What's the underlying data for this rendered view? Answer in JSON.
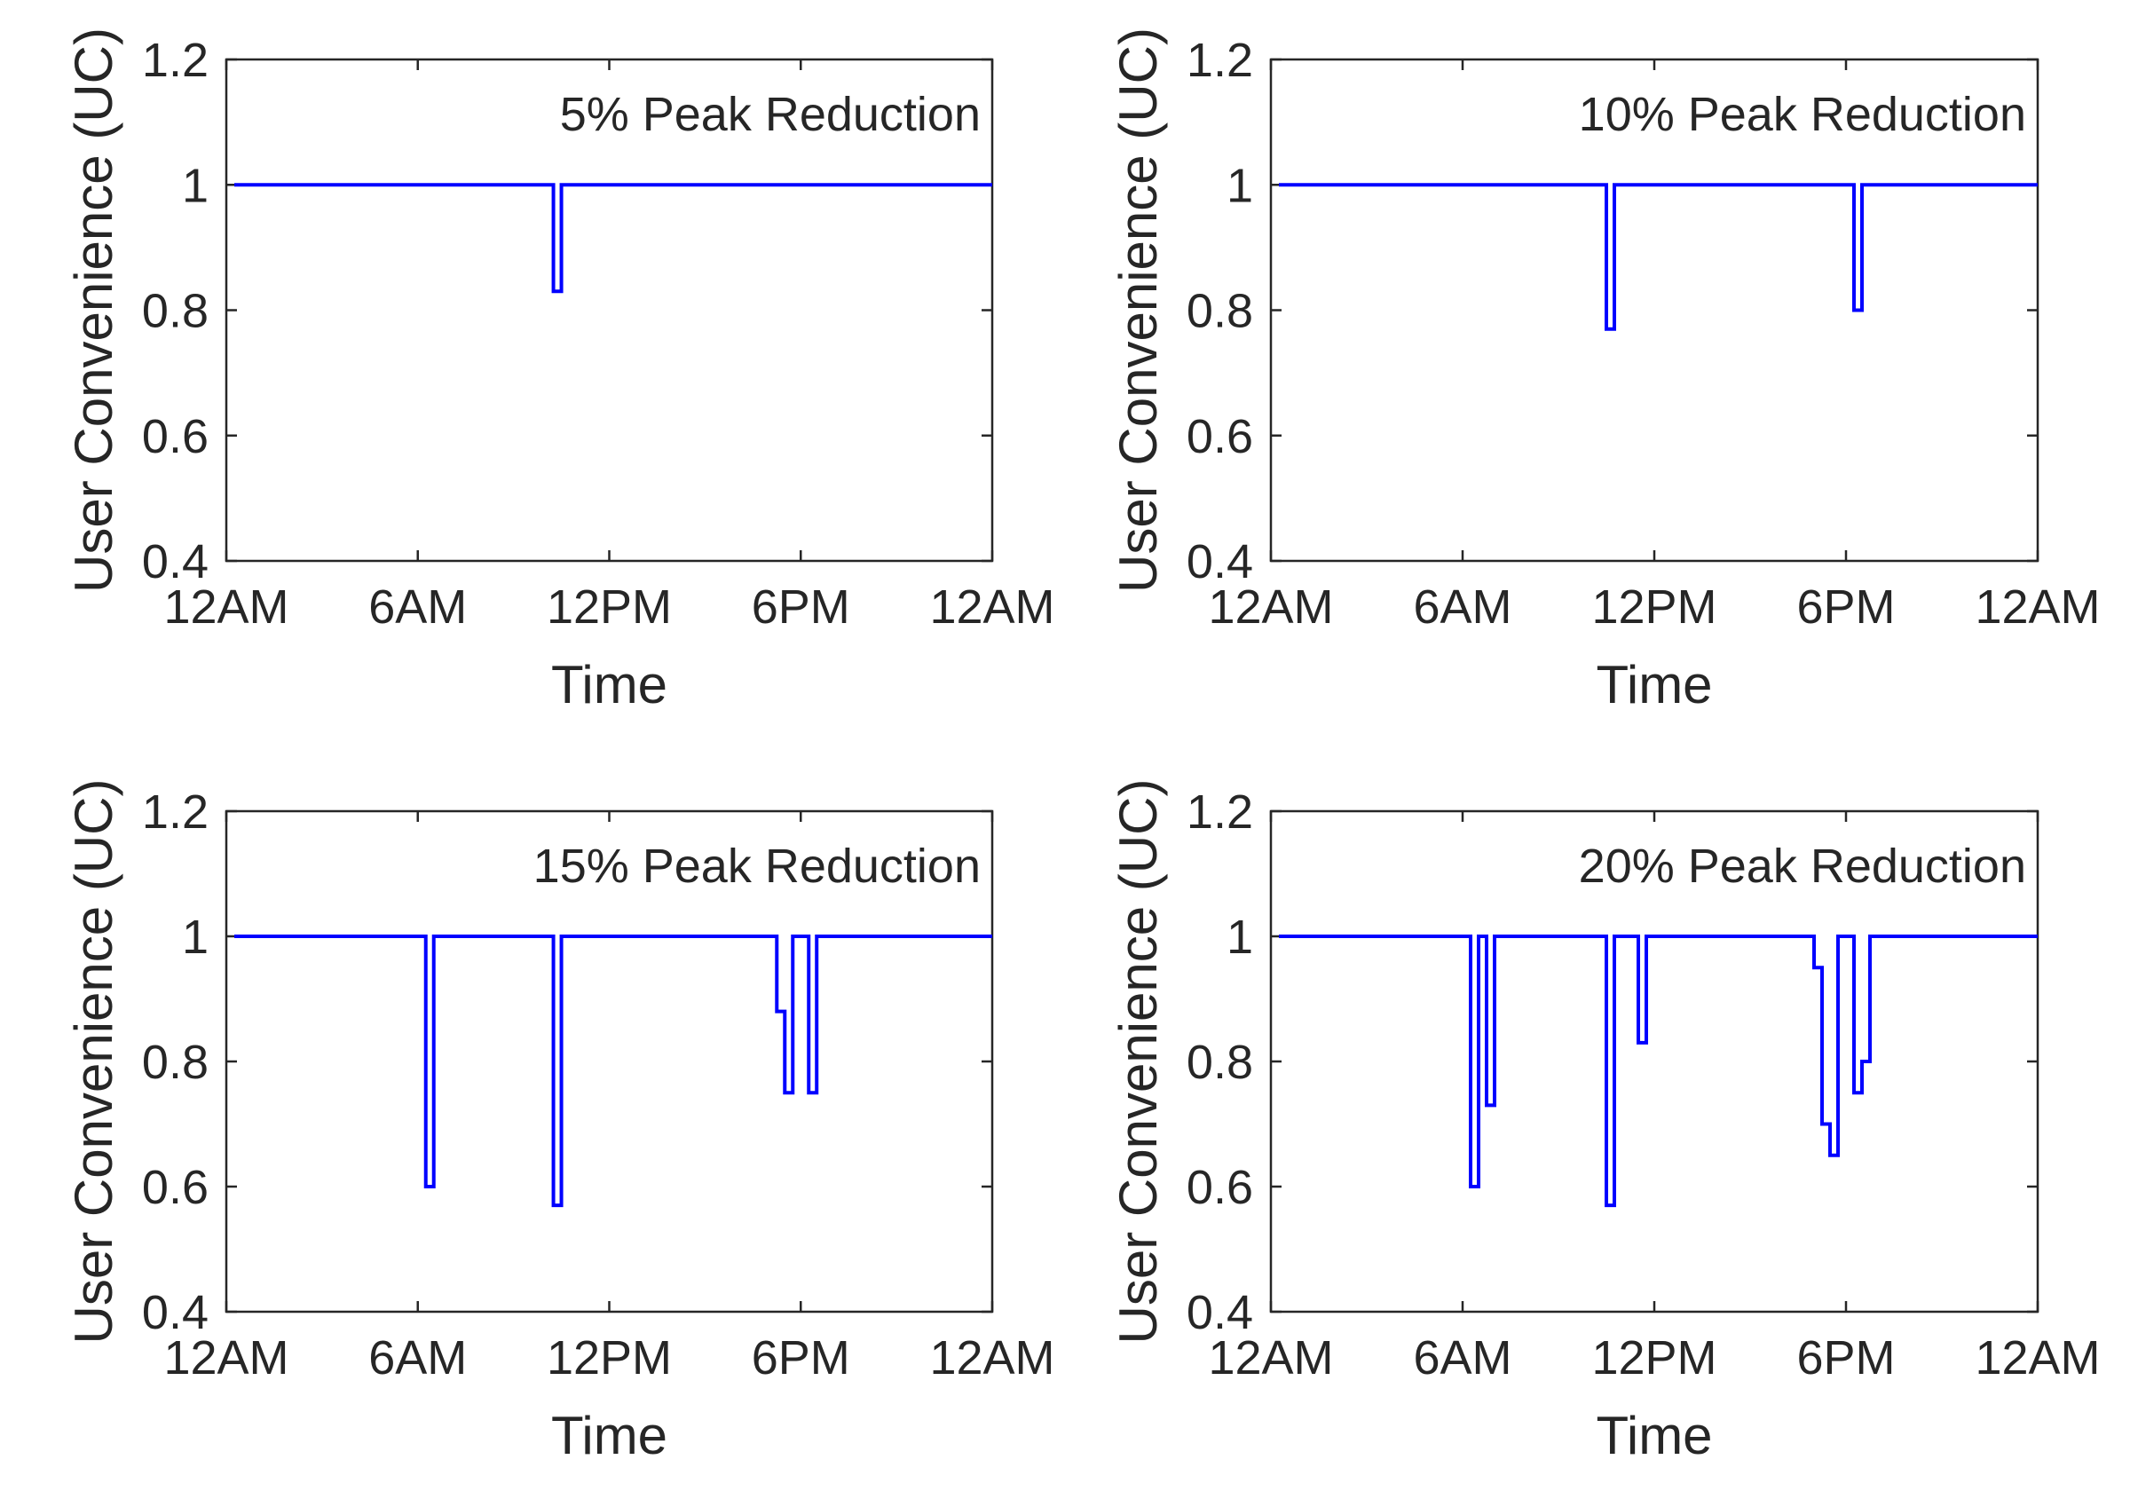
{
  "chart_data": [
    {
      "type": "line",
      "annotation": "5% Peak Reduction",
      "xlabel": "Time",
      "ylabel": "User Convenience (UC)",
      "xlim": [
        0,
        24
      ],
      "ylim": [
        0.4,
        1.2
      ],
      "xticks": [
        0,
        6,
        12,
        18,
        24
      ],
      "xtick_labels": [
        "12AM",
        "6AM",
        "12PM",
        "6PM",
        "12AM"
      ],
      "yticks": [
        0.4,
        0.6,
        0.8,
        1,
        1.2
      ],
      "ytick_labels": [
        "0.4",
        "0.6",
        "0.8",
        "1",
        "1.2"
      ],
      "line_color": "#0000ff",
      "series": [
        {
          "x": [
            0.25,
            10.25,
            10.25,
            10.5,
            10.5,
            24
          ],
          "y": [
            1,
            1,
            0.83,
            0.83,
            1,
            1
          ]
        }
      ]
    },
    {
      "type": "line",
      "annotation": "10% Peak Reduction",
      "xlabel": "Time",
      "ylabel": "User Convenience (UC)",
      "xlim": [
        0,
        24
      ],
      "ylim": [
        0.4,
        1.2
      ],
      "xticks": [
        0,
        6,
        12,
        18,
        24
      ],
      "xtick_labels": [
        "12AM",
        "6AM",
        "12PM",
        "6PM",
        "12AM"
      ],
      "yticks": [
        0.4,
        0.6,
        0.8,
        1,
        1.2
      ],
      "ytick_labels": [
        "0.4",
        "0.6",
        "0.8",
        "1",
        "1.2"
      ],
      "line_color": "#0000ff",
      "series": [
        {
          "x": [
            0.25,
            10.5,
            10.5,
            10.75,
            10.75,
            18.25,
            18.25,
            18.5,
            18.5,
            24
          ],
          "y": [
            1,
            1,
            0.77,
            0.77,
            1,
            1,
            0.8,
            0.8,
            1,
            1
          ]
        }
      ]
    },
    {
      "type": "line",
      "annotation": "15% Peak Reduction",
      "xlabel": "Time",
      "ylabel": "User Convenience (UC)",
      "xlim": [
        0,
        24
      ],
      "ylim": [
        0.4,
        1.2
      ],
      "xticks": [
        0,
        6,
        12,
        18,
        24
      ],
      "xtick_labels": [
        "12AM",
        "6AM",
        "12PM",
        "6PM",
        "12AM"
      ],
      "yticks": [
        0.4,
        0.6,
        0.8,
        1,
        1.2
      ],
      "ytick_labels": [
        "0.4",
        "0.6",
        "0.8",
        "1",
        "1.2"
      ],
      "line_color": "#0000ff",
      "series": [
        {
          "x": [
            0.25,
            6.25,
            6.25,
            6.5,
            6.5,
            10.25,
            10.25,
            10.5,
            10.5,
            17.25,
            17.25,
            17.5,
            17.5,
            17.75,
            17.75,
            18.25,
            18.25,
            18.5,
            18.5,
            24
          ],
          "y": [
            1,
            1,
            0.6,
            0.6,
            1,
            1,
            0.57,
            0.57,
            1,
            1,
            0.88,
            0.88,
            0.75,
            0.75,
            1,
            1,
            0.75,
            0.75,
            1,
            1
          ]
        }
      ]
    },
    {
      "type": "line",
      "annotation": "20% Peak Reduction",
      "xlabel": "Time",
      "ylabel": "User Convenience (UC)",
      "xlim": [
        0,
        24
      ],
      "ylim": [
        0.4,
        1.2
      ],
      "xticks": [
        0,
        6,
        12,
        18,
        24
      ],
      "xtick_labels": [
        "12AM",
        "6AM",
        "12PM",
        "6PM",
        "12AM"
      ],
      "yticks": [
        0.4,
        0.6,
        0.8,
        1,
        1.2
      ],
      "ytick_labels": [
        "0.4",
        "0.6",
        "0.8",
        "1",
        "1.2"
      ],
      "line_color": "#0000ff",
      "series": [
        {
          "x": [
            0.25,
            6.25,
            6.25,
            6.5,
            6.5,
            6.75,
            6.75,
            7.0,
            7.0,
            10.5,
            10.5,
            10.75,
            10.75,
            11.5,
            11.5,
            11.75,
            11.75,
            17.0,
            17.0,
            17.25,
            17.25,
            17.5,
            17.5,
            17.75,
            17.75,
            18.25,
            18.25,
            18.5,
            18.5,
            18.75,
            18.75,
            24
          ],
          "y": [
            1,
            1,
            0.6,
            0.6,
            1,
            1,
            0.73,
            0.73,
            1,
            1,
            0.57,
            0.57,
            1,
            1,
            0.83,
            0.83,
            1,
            1,
            0.95,
            0.95,
            0.7,
            0.7,
            0.65,
            0.65,
            1,
            1,
            0.75,
            0.75,
            0.8,
            0.8,
            1,
            1
          ]
        }
      ]
    }
  ]
}
